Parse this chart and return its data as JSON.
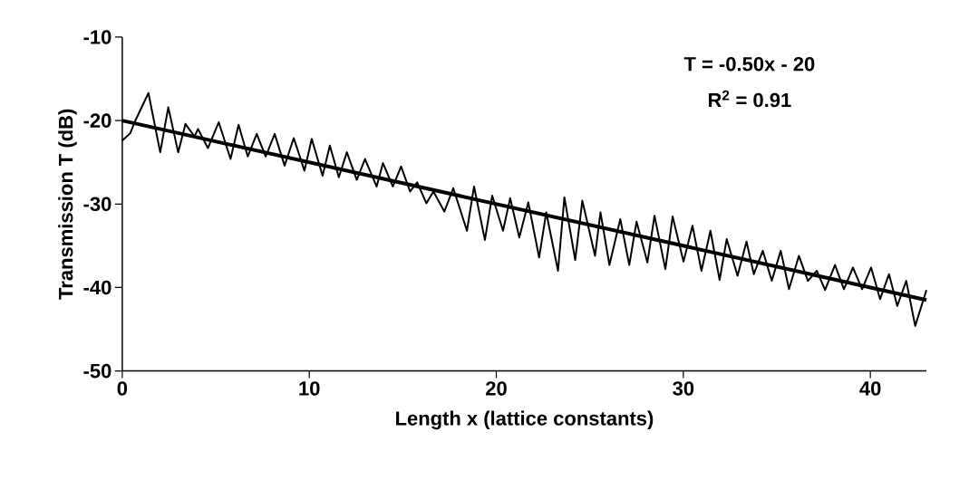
{
  "chart_data": {
    "type": "line",
    "xlabel": "Length x (lattice constants)",
    "ylabel": "Transmission T (dB)",
    "annotations": [
      "T = -0.50x - 20",
      "R$^{2}$ = 0.91"
    ],
    "xlim": [
      0,
      43
    ],
    "ylim": [
      -50,
      -10
    ],
    "xticks": [
      0,
      10,
      20,
      30,
      40
    ],
    "yticks": [
      -50,
      -40,
      -30,
      -20,
      -10
    ],
    "grid": false,
    "marker": "none",
    "line_style": "solid",
    "series": [
      {
        "color": "#000000",
        "x": [
          0,
          0.43,
          0.72,
          1.4,
          2.03,
          2.46,
          2.99,
          3.38,
          3.86,
          4.05,
          4.58,
          5.16,
          5.79,
          6.22,
          6.71,
          7.19,
          7.67,
          8.15,
          8.68,
          9.17,
          9.74,
          10.13,
          10.71,
          11.1,
          11.58,
          12.01,
          12.54,
          12.98,
          13.6,
          13.94,
          14.47,
          14.91,
          15.39,
          15.77,
          16.26,
          16.64,
          17.22,
          17.7,
          18.43,
          18.81,
          19.39,
          19.78,
          20.36,
          20.74,
          21.23,
          21.71,
          22.29,
          22.67,
          23.3,
          23.64,
          24.22,
          24.6,
          25.28,
          25.57,
          26.05,
          26.63,
          27.11,
          27.5,
          28.08,
          28.46,
          29.04,
          29.43,
          30.01,
          30.49,
          30.97,
          31.45,
          31.94,
          32.32,
          32.9,
          33.38,
          33.77,
          34.25,
          34.73,
          35.21,
          35.65,
          36.18,
          36.66,
          37.14,
          37.58,
          38.11,
          38.59,
          39.07,
          39.56,
          40.04,
          40.52,
          41.0,
          41.44,
          41.92,
          42.4,
          43.0
        ],
        "values": [
          -22.4,
          -21.5,
          -19.9,
          -16.7,
          -23.8,
          -18.4,
          -23.8,
          -20.4,
          -21.9,
          -21.0,
          -23.3,
          -20.2,
          -24.6,
          -20.5,
          -24.3,
          -21.6,
          -24.3,
          -21.6,
          -25.4,
          -22.1,
          -26.0,
          -22.2,
          -26.6,
          -23.0,
          -26.8,
          -23.8,
          -27.1,
          -24.6,
          -27.9,
          -25.1,
          -27.9,
          -25.5,
          -28.5,
          -27.4,
          -29.9,
          -28.5,
          -30.9,
          -28.1,
          -33.2,
          -27.9,
          -34.3,
          -29.0,
          -33.2,
          -29.3,
          -34.0,
          -29.8,
          -36.4,
          -31.0,
          -38.0,
          -29.2,
          -36.7,
          -29.6,
          -36.2,
          -31.0,
          -37.3,
          -31.8,
          -37.3,
          -32.1,
          -37.0,
          -31.4,
          -37.8,
          -31.5,
          -36.9,
          -32.6,
          -38.0,
          -33.2,
          -39.1,
          -34.2,
          -38.6,
          -34.5,
          -38.4,
          -35.6,
          -39.2,
          -35.6,
          -40.2,
          -36.2,
          -39.2,
          -38.0,
          -40.3,
          -37.3,
          -40.2,
          -37.6,
          -40.2,
          -37.6,
          -41.4,
          -38.4,
          -42.2,
          -39.2,
          -44.6,
          -40.3
        ]
      },
      {
        "color": "#000000",
        "x": [
          0,
          43
        ],
        "values": [
          -20,
          -41.5
        ]
      }
    ]
  }
}
